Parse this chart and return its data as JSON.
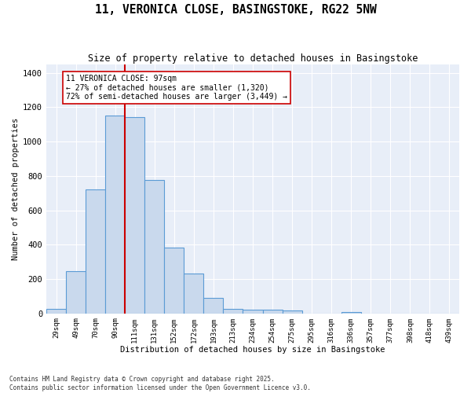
{
  "title": "11, VERONICA CLOSE, BASINGSTOKE, RG22 5NW",
  "subtitle": "Size of property relative to detached houses in Basingstoke",
  "xlabel": "Distribution of detached houses by size in Basingstoke",
  "ylabel": "Number of detached properties",
  "categories": [
    "29sqm",
    "49sqm",
    "70sqm",
    "90sqm",
    "111sqm",
    "131sqm",
    "152sqm",
    "172sqm",
    "193sqm",
    "213sqm",
    "234sqm",
    "254sqm",
    "275sqm",
    "295sqm",
    "316sqm",
    "336sqm",
    "357sqm",
    "377sqm",
    "398sqm",
    "418sqm",
    "439sqm"
  ],
  "values": [
    25,
    247,
    720,
    1150,
    1140,
    775,
    385,
    230,
    90,
    28,
    22,
    20,
    15,
    0,
    0,
    10,
    0,
    0,
    0,
    0,
    0
  ],
  "bar_color": "#c9d9ed",
  "bar_edge_color": "#5b9bd5",
  "bar_edge_width": 0.8,
  "red_line_color": "#cc0000",
  "annotation_title": "11 VERONICA CLOSE: 97sqm",
  "annotation_line1": "← 27% of detached houses are smaller (1,320)",
  "annotation_line2": "72% of semi-detached houses are larger (3,449) →",
  "annotation_box_color": "#ffffff",
  "annotation_box_edge": "#cc0000",
  "ylim": [
    0,
    1450
  ],
  "yticks": [
    0,
    200,
    400,
    600,
    800,
    1000,
    1200,
    1400
  ],
  "background_color": "#e8eef8",
  "grid_color": "#ffffff",
  "footer_line1": "Contains HM Land Registry data © Crown copyright and database right 2025.",
  "footer_line2": "Contains public sector information licensed under the Open Government Licence v3.0."
}
